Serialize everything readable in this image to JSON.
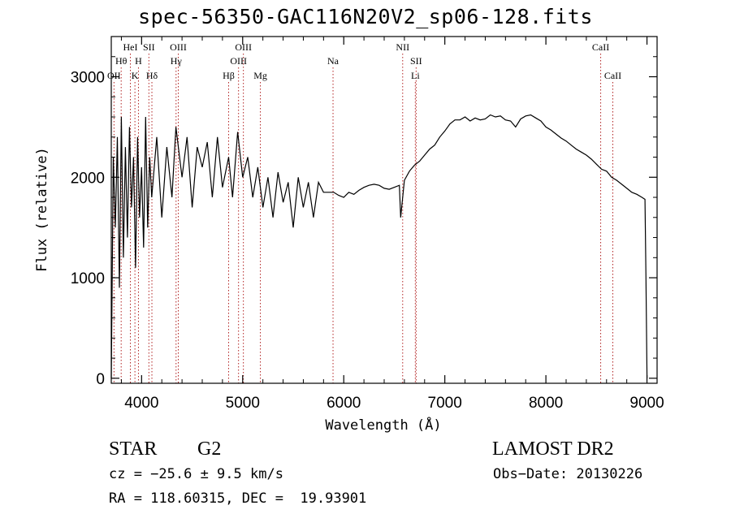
{
  "chart_data": {
    "type": "line",
    "title": "spec-56350-GAC116N20V2_sp06-128.fits",
    "xlabel": "Wavelength (Å)",
    "ylabel": "Flux (relative)",
    "xlim": [
      3700,
      9100
    ],
    "ylim": [
      -50,
      3400
    ],
    "xticks": [
      4000,
      5000,
      6000,
      7000,
      8000,
      9000
    ],
    "yticks": [
      0,
      1000,
      2000,
      3000
    ],
    "grid": false,
    "series": [
      {
        "color": "#000000",
        "x": [
          3700,
          3720,
          3740,
          3760,
          3780,
          3800,
          3820,
          3840,
          3860,
          3880,
          3900,
          3920,
          3940,
          3960,
          3980,
          4000,
          4020,
          4040,
          4060,
          4080,
          4100,
          4150,
          4200,
          4250,
          4300,
          4340,
          4400,
          4450,
          4500,
          4550,
          4600,
          4650,
          4700,
          4750,
          4800,
          4861,
          4900,
          4950,
          5000,
          5050,
          5100,
          5150,
          5200,
          5250,
          5300,
          5350,
          5400,
          5450,
          5500,
          5550,
          5600,
          5650,
          5700,
          5750,
          5800,
          5850,
          5900,
          5950,
          6000,
          6050,
          6100,
          6150,
          6200,
          6250,
          6300,
          6350,
          6400,
          6450,
          6500,
          6550,
          6563,
          6600,
          6650,
          6700,
          6750,
          6800,
          6850,
          6900,
          6950,
          7000,
          7050,
          7100,
          7150,
          7200,
          7250,
          7300,
          7350,
          7400,
          7450,
          7500,
          7550,
          7600,
          7650,
          7700,
          7750,
          7800,
          7850,
          7900,
          7950,
          8000,
          8050,
          8100,
          8150,
          8200,
          8250,
          8300,
          8350,
          8400,
          8450,
          8500,
          8550,
          8600,
          8650,
          8700,
          8750,
          8800,
          8850,
          8900,
          8950,
          8980,
          8990,
          9000
        ],
        "y": [
          0,
          2200,
          1500,
          2400,
          900,
          2600,
          1200,
          2300,
          1400,
          2500,
          1700,
          2200,
          1100,
          2400,
          1600,
          2100,
          1300,
          2600,
          1500,
          2200,
          1800,
          2400,
          1600,
          2300,
          1800,
          2500,
          2000,
          2400,
          1700,
          2300,
          2100,
          2350,
          1800,
          2400,
          1900,
          2200,
          1800,
          2450,
          2000,
          2200,
          1800,
          2100,
          1700,
          2000,
          1600,
          2050,
          1750,
          1950,
          1500,
          2000,
          1700,
          1950,
          1600,
          1950,
          1850,
          1850,
          1850,
          1820,
          1800,
          1850,
          1830,
          1870,
          1900,
          1920,
          1930,
          1920,
          1890,
          1880,
          1900,
          1920,
          1600,
          1970,
          2060,
          2120,
          2160,
          2220,
          2280,
          2320,
          2400,
          2460,
          2530,
          2570,
          2570,
          2600,
          2560,
          2590,
          2570,
          2580,
          2620,
          2600,
          2610,
          2570,
          2560,
          2500,
          2580,
          2610,
          2620,
          2590,
          2560,
          2500,
          2470,
          2430,
          2390,
          2360,
          2320,
          2280,
          2250,
          2220,
          2180,
          2130,
          2080,
          2060,
          2000,
          1970,
          1930,
          1890,
          1850,
          1830,
          1800,
          1780,
          1000,
          0
        ]
      }
    ],
    "lines": [
      {
        "label": "OII",
        "x": 3727,
        "row": 3
      },
      {
        "label": "Hθ",
        "x": 3798,
        "row": 2
      },
      {
        "label": "HeI",
        "x": 3889,
        "row": 1
      },
      {
        "label": "K",
        "x": 3934,
        "row": 3
      },
      {
        "label": "H",
        "x": 3969,
        "row": 2
      },
      {
        "label": "SII",
        "x": 4072,
        "row": 1
      },
      {
        "label": "Hδ",
        "x": 4102,
        "row": 3
      },
      {
        "label": "OIII",
        "x": 4363,
        "row": 1
      },
      {
        "label": "Hγ",
        "x": 4341,
        "row": 2
      },
      {
        "label": "Hβ",
        "x": 4861,
        "row": 3
      },
      {
        "label": "OIII",
        "x": 4959,
        "row": 2
      },
      {
        "label": "OIII",
        "x": 5007,
        "row": 1
      },
      {
        "label": "Mg",
        "x": 5175,
        "row": 3
      },
      {
        "label": "Na",
        "x": 5894,
        "row": 2
      },
      {
        "label": "NII",
        "x": 6583,
        "row": 1
      },
      {
        "label": "SII",
        "x": 6716,
        "row": 2
      },
      {
        "label": "Li",
        "x": 6708,
        "row": 3
      },
      {
        "label": "CaII",
        "x": 8542,
        "row": 1
      },
      {
        "label": "CaII",
        "x": 8662,
        "row": 3
      }
    ]
  },
  "info": {
    "class": "STAR",
    "subclass": "G2",
    "survey": "LAMOST DR2",
    "cz": "cz = −25.6 ± 9.5 km/s",
    "obs_date": "Obs−Date: 20130226",
    "coords": "RA = 118.60315, DEC =  19.93901"
  }
}
